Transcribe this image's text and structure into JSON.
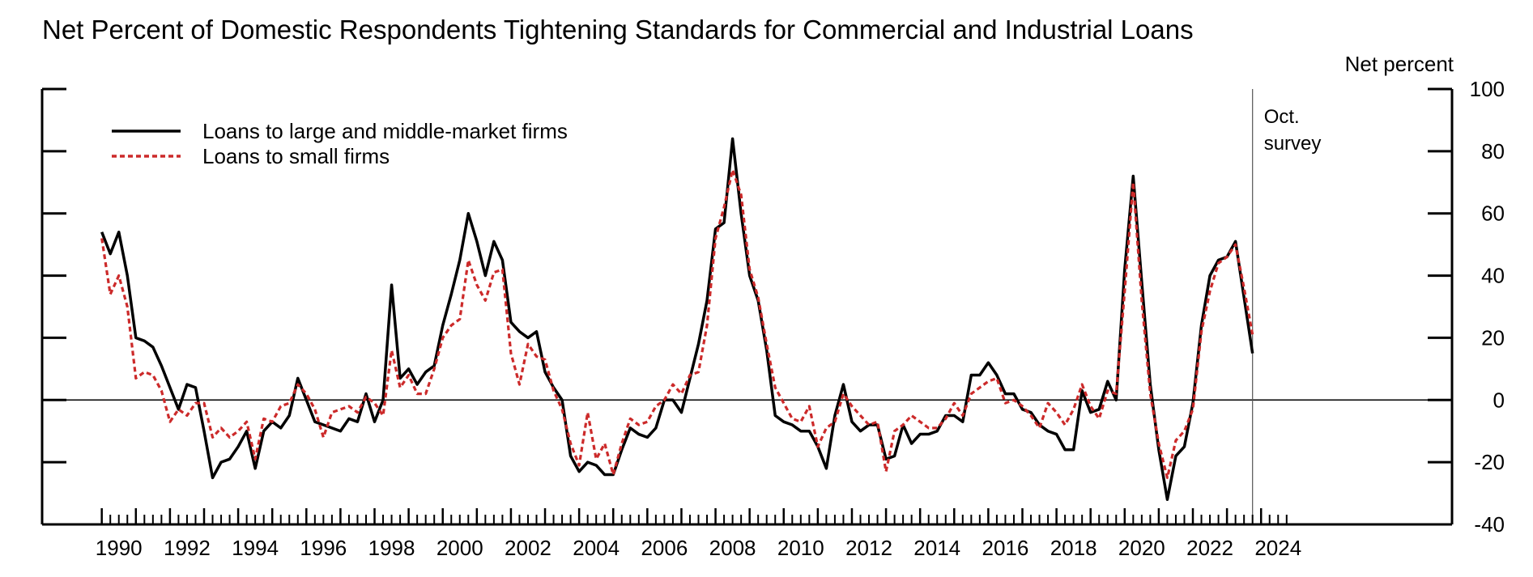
{
  "chart_data": {
    "type": "line",
    "title": "Net Percent of Domestic Respondents Tightening Standards for Commercial and Industrial Loans",
    "ylabel": "Net percent",
    "xlabel": "",
    "ylim": [
      -40,
      100
    ],
    "xlim": [
      1988.25,
      2029.6
    ],
    "y_ticks": [
      -40,
      -20,
      0,
      20,
      40,
      60,
      80,
      100
    ],
    "y_tick_labels": [
      "-40",
      "-20",
      "0",
      "20",
      "40",
      "60",
      "80",
      "100"
    ],
    "x_ticks": [
      1990,
      1992,
      1994,
      1996,
      1998,
      2000,
      2002,
      2004,
      2006,
      2008,
      2010,
      2012,
      2014,
      2016,
      2018,
      2020,
      2022,
      2024
    ],
    "x_tick_labels": [
      "1990",
      "1992",
      "1994",
      "1996",
      "1998",
      "2000",
      "2002",
      "2004",
      "2006",
      "2008",
      "2010",
      "2012",
      "2014",
      "2016",
      "2018",
      "2020",
      "2022",
      "2024"
    ],
    "y_axis_side": "right",
    "zero_line": true,
    "grid": false,
    "legend_position": "top-left",
    "annotation": {
      "lines": [
        "Oct.",
        "survey"
      ],
      "x": 2023.75
    },
    "series": [
      {
        "name": "Loans to large and middle-market firms",
        "color": "#000000",
        "style": "solid",
        "points": [
          [
            1990.0,
            54
          ],
          [
            1990.25,
            47
          ],
          [
            1990.5,
            54
          ],
          [
            1990.75,
            40
          ],
          [
            1991.0,
            20
          ],
          [
            1991.25,
            19
          ],
          [
            1991.5,
            17
          ],
          [
            1991.75,
            11
          ],
          [
            1992.0,
            4
          ],
          [
            1992.25,
            -3
          ],
          [
            1992.5,
            5
          ],
          [
            1992.75,
            4
          ],
          [
            1993.0,
            -10
          ],
          [
            1993.25,
            -25
          ],
          [
            1993.5,
            -20
          ],
          [
            1993.75,
            -19
          ],
          [
            1994.0,
            -15
          ],
          [
            1994.25,
            -10
          ],
          [
            1994.5,
            -22
          ],
          [
            1994.75,
            -10
          ],
          [
            1995.0,
            -7
          ],
          [
            1995.25,
            -9
          ],
          [
            1995.5,
            -5
          ],
          [
            1995.75,
            7
          ],
          [
            1996.0,
            0
          ],
          [
            1996.25,
            -7
          ],
          [
            1996.5,
            -8
          ],
          [
            1996.75,
            -9
          ],
          [
            1997.0,
            -10
          ],
          [
            1997.25,
            -6
          ],
          [
            1997.5,
            -7
          ],
          [
            1997.75,
            2
          ],
          [
            1998.0,
            -7
          ],
          [
            1998.25,
            0
          ],
          [
            1998.5,
            37
          ],
          [
            1998.75,
            7
          ],
          [
            1999.0,
            10
          ],
          [
            1999.25,
            5
          ],
          [
            1999.5,
            9
          ],
          [
            1999.75,
            11
          ],
          [
            2000.0,
            24
          ],
          [
            2000.25,
            34
          ],
          [
            2000.5,
            45
          ],
          [
            2000.75,
            60
          ],
          [
            2001.0,
            51
          ],
          [
            2001.25,
            40
          ],
          [
            2001.5,
            51
          ],
          [
            2001.75,
            45
          ],
          [
            2002.0,
            25
          ],
          [
            2002.25,
            22
          ],
          [
            2002.5,
            20
          ],
          [
            2002.75,
            22
          ],
          [
            2003.0,
            9
          ],
          [
            2003.25,
            4
          ],
          [
            2003.5,
            0
          ],
          [
            2003.75,
            -18
          ],
          [
            2004.0,
            -23
          ],
          [
            2004.25,
            -20
          ],
          [
            2004.5,
            -21
          ],
          [
            2004.75,
            -24
          ],
          [
            2005.0,
            -24
          ],
          [
            2005.25,
            -16
          ],
          [
            2005.5,
            -9
          ],
          [
            2005.75,
            -11
          ],
          [
            2006.0,
            -12
          ],
          [
            2006.25,
            -9
          ],
          [
            2006.5,
            0
          ],
          [
            2006.75,
            0
          ],
          [
            2007.0,
            -4
          ],
          [
            2007.25,
            7
          ],
          [
            2007.5,
            18
          ],
          [
            2007.75,
            32
          ],
          [
            2008.0,
            55
          ],
          [
            2008.25,
            57
          ],
          [
            2008.5,
            84
          ],
          [
            2008.75,
            60
          ],
          [
            2009.0,
            40
          ],
          [
            2009.25,
            32
          ],
          [
            2009.5,
            16
          ],
          [
            2009.75,
            -5
          ],
          [
            2010.0,
            -7
          ],
          [
            2010.25,
            -8
          ],
          [
            2010.5,
            -10
          ],
          [
            2010.75,
            -10
          ],
          [
            2011.0,
            -15
          ],
          [
            2011.25,
            -22
          ],
          [
            2011.5,
            -5
          ],
          [
            2011.75,
            5
          ],
          [
            2012.0,
            -7
          ],
          [
            2012.25,
            -10
          ],
          [
            2012.5,
            -8
          ],
          [
            2012.75,
            -8
          ],
          [
            2013.0,
            -19
          ],
          [
            2013.25,
            -18
          ],
          [
            2013.5,
            -8
          ],
          [
            2013.75,
            -14
          ],
          [
            2014.0,
            -11
          ],
          [
            2014.25,
            -11
          ],
          [
            2014.5,
            -10
          ],
          [
            2014.75,
            -5
          ],
          [
            2015.0,
            -5
          ],
          [
            2015.25,
            -7
          ],
          [
            2015.5,
            8
          ],
          [
            2015.75,
            8
          ],
          [
            2016.0,
            12
          ],
          [
            2016.25,
            8
          ],
          [
            2016.5,
            2
          ],
          [
            2016.75,
            2
          ],
          [
            2017.0,
            -3
          ],
          [
            2017.25,
            -4
          ],
          [
            2017.5,
            -8
          ],
          [
            2017.75,
            -10
          ],
          [
            2018.0,
            -11
          ],
          [
            2018.25,
            -16
          ],
          [
            2018.5,
            -16
          ],
          [
            2018.75,
            3
          ],
          [
            2019.0,
            -4
          ],
          [
            2019.25,
            -3
          ],
          [
            2019.5,
            6
          ],
          [
            2019.75,
            0
          ],
          [
            2020.0,
            42
          ],
          [
            2020.25,
            72
          ],
          [
            2020.5,
            38
          ],
          [
            2020.75,
            5
          ],
          [
            2021.0,
            -16
          ],
          [
            2021.25,
            -32
          ],
          [
            2021.5,
            -18
          ],
          [
            2021.75,
            -15
          ],
          [
            2022.0,
            -1
          ],
          [
            2022.25,
            24
          ],
          [
            2022.5,
            40
          ],
          [
            2022.75,
            45
          ],
          [
            2023.0,
            46
          ],
          [
            2023.25,
            51
          ],
          [
            2023.5,
            33
          ],
          [
            2023.75,
            15
          ]
        ]
      },
      {
        "name": "Loans to small firms",
        "color": "#cc2a2a",
        "style": "dashed",
        "points": [
          [
            1990.0,
            52
          ],
          [
            1990.25,
            34
          ],
          [
            1990.5,
            40
          ],
          [
            1990.75,
            30
          ],
          [
            1991.0,
            7
          ],
          [
            1991.25,
            9
          ],
          [
            1991.5,
            8
          ],
          [
            1991.75,
            3
          ],
          [
            1992.0,
            -7
          ],
          [
            1992.25,
            -3
          ],
          [
            1992.5,
            -5
          ],
          [
            1992.75,
            -1
          ],
          [
            1993.0,
            -1
          ],
          [
            1993.25,
            -12
          ],
          [
            1993.5,
            -9
          ],
          [
            1993.75,
            -12
          ],
          [
            1994.0,
            -10
          ],
          [
            1994.25,
            -7
          ],
          [
            1994.5,
            -19
          ],
          [
            1994.75,
            -6
          ],
          [
            1995.0,
            -7
          ],
          [
            1995.25,
            -2
          ],
          [
            1995.5,
            -1
          ],
          [
            1995.75,
            5
          ],
          [
            1996.0,
            2
          ],
          [
            1996.25,
            -3
          ],
          [
            1996.5,
            -12
          ],
          [
            1996.75,
            -4
          ],
          [
            1997.0,
            -3
          ],
          [
            1997.25,
            -2
          ],
          [
            1997.5,
            -4
          ],
          [
            1997.75,
            1
          ],
          [
            1998.0,
            -1
          ],
          [
            1998.25,
            -5
          ],
          [
            1998.5,
            16
          ],
          [
            1998.75,
            4
          ],
          [
            1999.0,
            8
          ],
          [
            1999.25,
            2
          ],
          [
            1999.5,
            2
          ],
          [
            1999.75,
            10
          ],
          [
            2000.0,
            20
          ],
          [
            2000.25,
            24
          ],
          [
            2000.5,
            26
          ],
          [
            2000.75,
            45
          ],
          [
            2001.0,
            37
          ],
          [
            2001.25,
            32
          ],
          [
            2001.5,
            41
          ],
          [
            2001.75,
            42
          ],
          [
            2002.0,
            15
          ],
          [
            2002.25,
            5
          ],
          [
            2002.5,
            18
          ],
          [
            2002.75,
            14
          ],
          [
            2003.0,
            13
          ],
          [
            2003.25,
            3
          ],
          [
            2003.5,
            -3
          ],
          [
            2003.75,
            -14
          ],
          [
            2004.0,
            -21
          ],
          [
            2004.25,
            -4
          ],
          [
            2004.5,
            -19
          ],
          [
            2004.75,
            -14
          ],
          [
            2005.0,
            -24
          ],
          [
            2005.25,
            -14
          ],
          [
            2005.5,
            -6
          ],
          [
            2005.75,
            -8
          ],
          [
            2006.0,
            -7
          ],
          [
            2006.25,
            -2
          ],
          [
            2006.5,
            0
          ],
          [
            2006.75,
            5
          ],
          [
            2007.0,
            2
          ],
          [
            2007.25,
            8
          ],
          [
            2007.5,
            9
          ],
          [
            2007.75,
            24
          ],
          [
            2008.0,
            52
          ],
          [
            2008.25,
            62
          ],
          [
            2008.5,
            74
          ],
          [
            2008.75,
            66
          ],
          [
            2009.0,
            42
          ],
          [
            2009.25,
            33
          ],
          [
            2009.5,
            18
          ],
          [
            2009.75,
            4
          ],
          [
            2010.0,
            -1
          ],
          [
            2010.25,
            -6
          ],
          [
            2010.5,
            -7
          ],
          [
            2010.75,
            -2
          ],
          [
            2011.0,
            -15
          ],
          [
            2011.25,
            -9
          ],
          [
            2011.5,
            -7
          ],
          [
            2011.75,
            2
          ],
          [
            2012.0,
            -2
          ],
          [
            2012.25,
            -5
          ],
          [
            2012.5,
            -8
          ],
          [
            2012.75,
            -7
          ],
          [
            2013.0,
            -23
          ],
          [
            2013.25,
            -10
          ],
          [
            2013.5,
            -8
          ],
          [
            2013.75,
            -5
          ],
          [
            2014.0,
            -7
          ],
          [
            2014.25,
            -9
          ],
          [
            2014.5,
            -9
          ],
          [
            2014.75,
            -6
          ],
          [
            2015.0,
            -1
          ],
          [
            2015.25,
            -5
          ],
          [
            2015.5,
            2
          ],
          [
            2015.75,
            4
          ],
          [
            2016.0,
            6
          ],
          [
            2016.25,
            7
          ],
          [
            2016.5,
            -1
          ],
          [
            2016.75,
            0
          ],
          [
            2017.0,
            -2
          ],
          [
            2017.25,
            -5
          ],
          [
            2017.5,
            -9
          ],
          [
            2017.75,
            -1
          ],
          [
            2018.0,
            -4
          ],
          [
            2018.25,
            -8
          ],
          [
            2018.5,
            -3
          ],
          [
            2018.75,
            5
          ],
          [
            2019.0,
            -2
          ],
          [
            2019.25,
            -6
          ],
          [
            2019.5,
            3
          ],
          [
            2019.75,
            2
          ],
          [
            2020.0,
            35
          ],
          [
            2020.25,
            70
          ],
          [
            2020.5,
            32
          ],
          [
            2020.75,
            2
          ],
          [
            2021.0,
            -14
          ],
          [
            2021.25,
            -25
          ],
          [
            2021.5,
            -13
          ],
          [
            2021.75,
            -10
          ],
          [
            2022.0,
            -3
          ],
          [
            2022.25,
            22
          ],
          [
            2022.5,
            35
          ],
          [
            2022.75,
            44
          ],
          [
            2023.0,
            46
          ],
          [
            2023.25,
            50
          ],
          [
            2023.5,
            36
          ],
          [
            2023.75,
            21
          ]
        ]
      }
    ]
  }
}
